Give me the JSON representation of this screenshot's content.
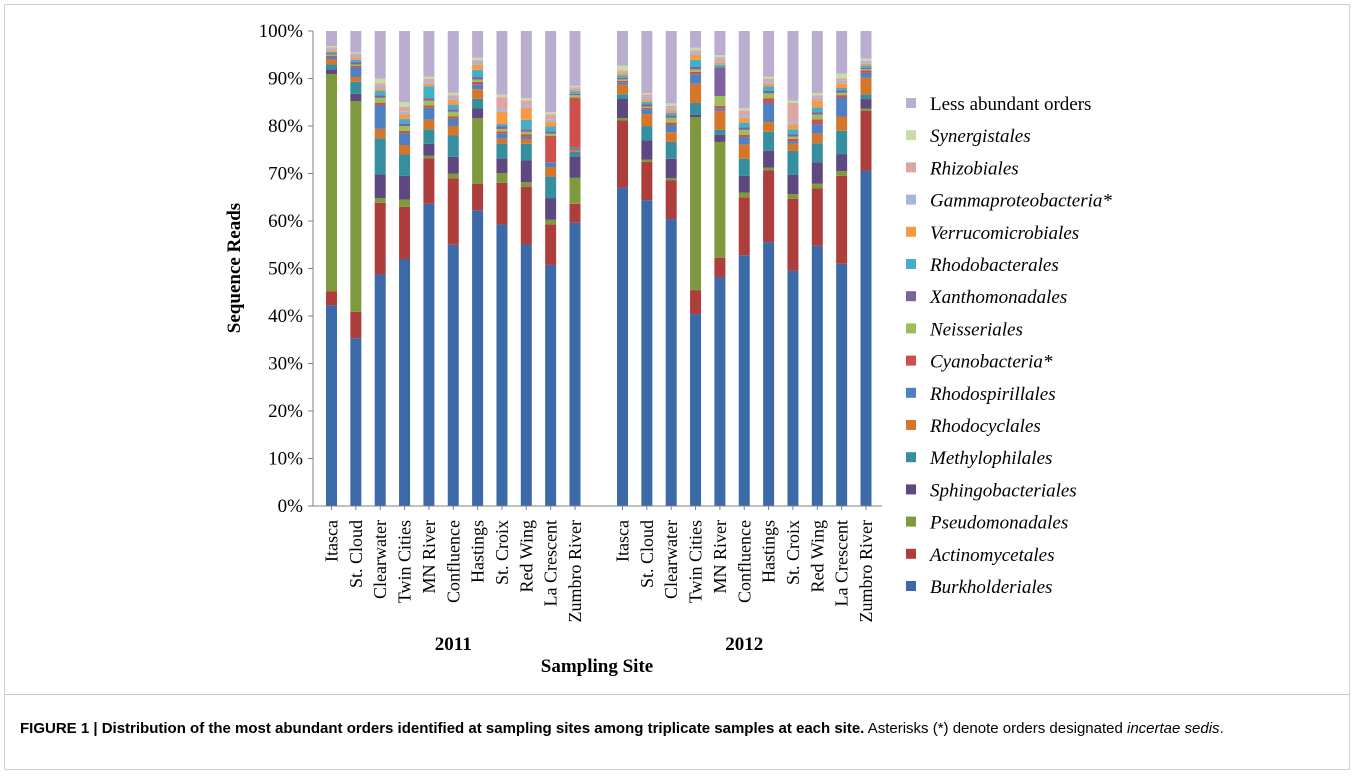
{
  "chart_data": {
    "type": "bar",
    "stacked": true,
    "percent": true,
    "ylabel": "Sequence Reads",
    "xlabel": "Sampling Site",
    "ylim": [
      0,
      100
    ],
    "yticks": [
      "0%",
      "10%",
      "20%",
      "30%",
      "40%",
      "50%",
      "60%",
      "70%",
      "80%",
      "90%",
      "100%"
    ],
    "groups": [
      "2011",
      "2012"
    ],
    "categories": [
      "Itasca",
      "St. Cloud",
      "Clearwater",
      "Twin Cities",
      "MN River",
      "Confluence",
      "Hastings",
      "St. Croix",
      "Red Wing",
      "La Crescent",
      "Zumbro River"
    ],
    "legend_position": "right",
    "colors": {
      "Burkholderiales": "#3C6AA9",
      "Actinomycetales": "#AE3E3B",
      "Pseudomonadales": "#7E9A3C",
      "Sphingobacteriales": "#5F4780",
      "Methylophilales": "#358F9E",
      "Rhodocyclales": "#D5762B",
      "Rhodospirillales": "#4F80C2",
      "Cyanobacteria*": "#CF4F4B",
      "Neisseriales": "#9DBF59",
      "Xanthomonadales": "#7E62A0",
      "Rhodobacterales": "#45AFC7",
      "Verrucomicrobiales": "#F89A44",
      "Gammaproteobacteria*": "#A4B7DA",
      "Rhizobiales": "#DDA6A5",
      "Synergistales": "#C9DBA8",
      "Less abundant orders": "#B9AECF"
    },
    "series": [
      {
        "name": "Burkholderiales",
        "values_2011": [
          42.5,
          35,
          48.5,
          52,
          63,
          55,
          61,
          57.5,
          54.5,
          50.5,
          60
        ],
        "values_2012": [
          66.5,
          64,
          59.5,
          40,
          47.5,
          52,
          55,
          49,
          54.5,
          51,
          70.5
        ]
      },
      {
        "name": "Actinomycetales",
        "values_2011": [
          3,
          5.5,
          15,
          11,
          9.5,
          14,
          5.5,
          8.5,
          12,
          8.5,
          4
        ],
        "values_2012": [
          14,
          8,
          8,
          5,
          4,
          12,
          15,
          15,
          12,
          18.5,
          12.5
        ]
      },
      {
        "name": "Pseudomonadales",
        "values_2011": [
          46,
          44,
          1,
          1.5,
          0.5,
          1,
          13.5,
          2,
          1,
          1,
          5.5
        ],
        "values_2012": [
          0.5,
          0.5,
          0.5,
          36,
          24,
          1,
          0.5,
          1,
          1,
          1,
          0.5
        ]
      },
      {
        "name": "Sphingobacteriales",
        "values_2011": [
          1,
          1.5,
          5,
          5,
          2.5,
          3.5,
          2,
          3,
          4.5,
          4.5,
          4.5
        ],
        "values_2012": [
          4,
          4,
          4,
          0.5,
          1.5,
          3.5,
          3.5,
          4,
          4.5,
          3.5,
          2
        ]
      },
      {
        "name": "Methylophilales",
        "values_2011": [
          1,
          2.5,
          7.5,
          4.5,
          3,
          4.5,
          2,
          3,
          3.5,
          4.5,
          1
        ],
        "values_2012": [
          1,
          3,
          3.5,
          2.5,
          1,
          3.5,
          4,
          5,
          4,
          5,
          1
        ]
      },
      {
        "name": "Rhodocyclales",
        "values_2011": [
          1,
          1,
          2,
          2,
          2,
          2,
          2,
          1,
          1,
          2,
          0.5
        ],
        "values_2012": [
          2,
          2.5,
          2,
          4,
          4,
          3,
          2,
          1.5,
          2,
          3,
          3.5
        ]
      },
      {
        "name": "Rhodospirillales",
        "values_2011": [
          0.5,
          2,
          5,
          2.5,
          2.5,
          1.5,
          1,
          1,
          0.5,
          1,
          0.5
        ],
        "values_2012": [
          0.5,
          1,
          1.5,
          2,
          0.5,
          1.5,
          4,
          0.5,
          2,
          4,
          1
        ]
      },
      {
        "name": "Cyanobacteria*",
        "values_2011": [
          0.3,
          0.3,
          0.5,
          0.5,
          0.5,
          0.5,
          0.5,
          0.5,
          0.5,
          5.5,
          10.5
        ],
        "values_2012": [
          0.3,
          0.3,
          0.5,
          0.5,
          0.5,
          0.5,
          1,
          0.5,
          1,
          0.5,
          0.5
        ]
      },
      {
        "name": "Neisseriales",
        "values_2011": [
          0.3,
          0.3,
          1,
          1,
          1,
          1,
          0.5,
          0.5,
          0.5,
          0.5,
          0.5
        ],
        "values_2012": [
          0.3,
          0.3,
          1,
          0.5,
          2,
          1,
          1,
          0.5,
          1,
          0.5,
          0.3
        ]
      },
      {
        "name": "Xanthomonadales",
        "values_2011": [
          0.3,
          0.5,
          0.5,
          0.5,
          0.5,
          0.5,
          0.5,
          0.5,
          0.5,
          0.5,
          0.3
        ],
        "values_2012": [
          0.3,
          0.5,
          0.5,
          0.5,
          6,
          0.5,
          0.5,
          0.5,
          0.5,
          0.5,
          0.3
        ]
      },
      {
        "name": "Rhodobacterales",
        "values_2011": [
          0.3,
          0.5,
          1,
          1,
          2.5,
          1,
          1.5,
          0.5,
          2,
          1,
          0.5
        ],
        "values_2012": [
          0.5,
          0.5,
          0.5,
          1.5,
          0.5,
          1,
          1,
          1,
          1,
          0.5,
          0.5
        ]
      },
      {
        "name": "Verrucomicrobiales",
        "values_2011": [
          0.3,
          0.5,
          0.5,
          1,
          0.5,
          1,
          1,
          2.5,
          2.5,
          1,
          0.3
        ],
        "values_2012": [
          0.5,
          0.5,
          0.5,
          1,
          0.5,
          1,
          0.5,
          1,
          1.5,
          1,
          0.3
        ]
      },
      {
        "name": "Gammaproteobacteria*",
        "values_2011": [
          0.3,
          0.5,
          0.5,
          0.5,
          0.5,
          0.5,
          0.5,
          0.5,
          0.5,
          0.5,
          0.3
        ],
        "values_2012": [
          0.3,
          0.5,
          0.5,
          0.5,
          0.5,
          0.5,
          0.5,
          0.5,
          0.5,
          0.5,
          0.3
        ]
      },
      {
        "name": "Rhizobiales",
        "values_2011": [
          0.3,
          0.3,
          0.5,
          1,
          0.5,
          0.5,
          0.5,
          2.5,
          1,
          1,
          0.3
        ],
        "values_2012": [
          0.3,
          0.5,
          0.5,
          0.5,
          0.5,
          1,
          0.5,
          4,
          0.5,
          0.5,
          0.3
        ]
      },
      {
        "name": "Synergistales",
        "values_2011": [
          0.3,
          0.3,
          1,
          1,
          0.5,
          0.5,
          0.5,
          0.5,
          0.5,
          0.5,
          0.3
        ],
        "values_2012": [
          1,
          0.3,
          0.5,
          0.5,
          0.5,
          0.5,
          0.5,
          0.5,
          0.5,
          1,
          0.5
        ]
      },
      {
        "name": "Less abundant orders",
        "values_2011": [
          3.2,
          4.4,
          10,
          15,
          9.5,
          13,
          5.5,
          13,
          14,
          17,
          11.6
        ],
        "values_2012": [
          7.2,
          13,
          15,
          3.5,
          5,
          16,
          9.5,
          14.5,
          13,
          9,
          5.8
        ]
      }
    ]
  },
  "caption": {
    "lead": "FIGURE 1 | Distribution of the most abundant orders identified at sampling sites among triplicate samples at each site.",
    "text_before": " Asterisks (*) denote orders designated ",
    "italic": "incertae sedis",
    "text_after": "."
  }
}
